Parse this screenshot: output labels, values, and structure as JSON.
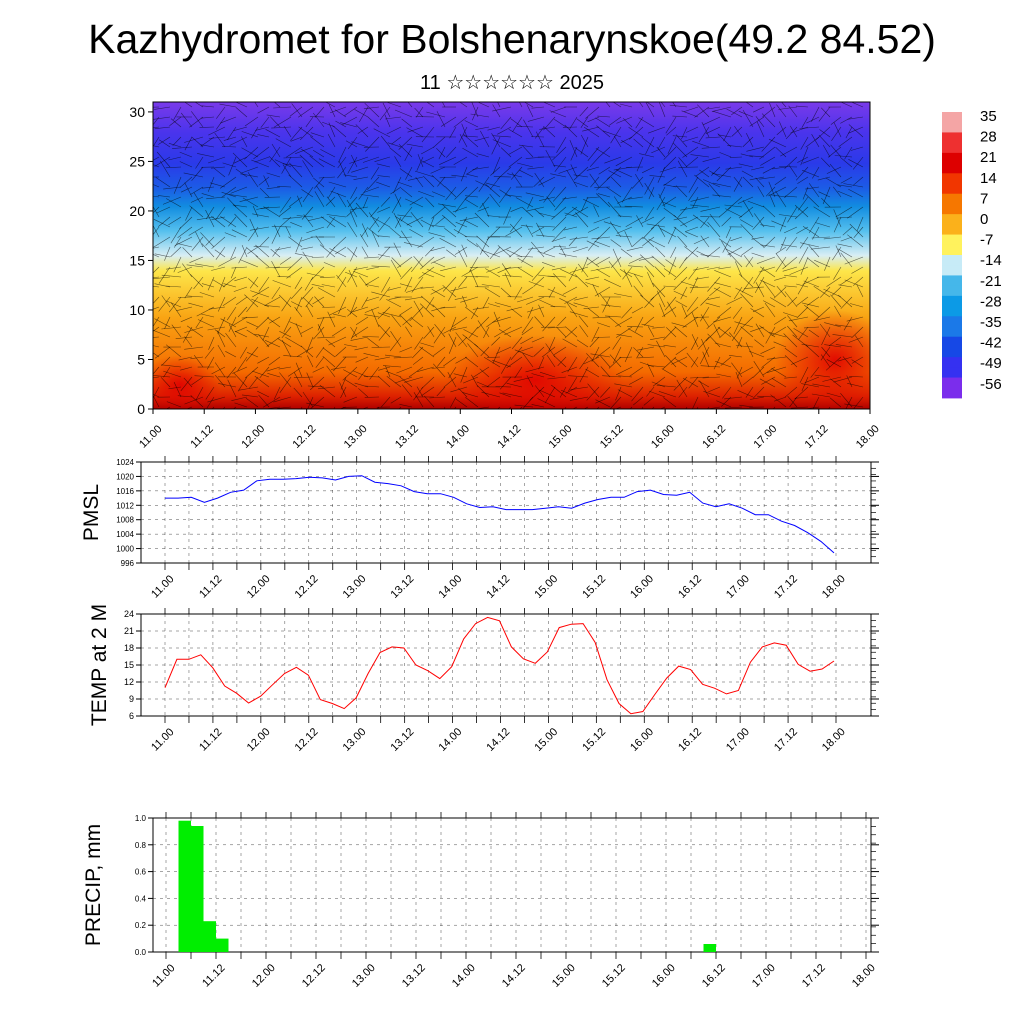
{
  "page": {
    "title": "Kazhydromet for Bolshenarynskoe(49.2 84.52)",
    "subtitle": "11 ☆☆☆☆☆☆ 2025"
  },
  "time_labels": [
    "11.00",
    "11.12",
    "12.00",
    "12.12",
    "13.00",
    "13.12",
    "14.00",
    "14.12",
    "15.00",
    "15.12",
    "16.00",
    "16.12",
    "17.00",
    "17.12",
    "18.00"
  ],
  "chart_data": [
    {
      "type": "heatmap",
      "title": "",
      "x_categories": [
        "11.00",
        "11.12",
        "12.00",
        "12.12",
        "13.00",
        "13.12",
        "14.00",
        "14.12",
        "15.00",
        "15.12",
        "16.00",
        "16.12",
        "17.00",
        "17.12",
        "18.00"
      ],
      "ylim": [
        0,
        31
      ],
      "yticks": [
        0,
        5,
        10,
        15,
        20,
        25,
        30
      ],
      "colorbar": {
        "labels": [
          "35",
          "28",
          "21",
          "14",
          "7",
          "0",
          "-7",
          "-14",
          "-21",
          "-28",
          "-35",
          "-42",
          "-49",
          "-56"
        ],
        "colors": [
          "#f4a5a5",
          "#ee3030",
          "#dd0000",
          "#f13600",
          "#f67700",
          "#fbb11b",
          "#fff25d",
          "#c7ebf7",
          "#45b7ea",
          "#0c9ae6",
          "#1b79e8",
          "#1648e6",
          "#3531f1",
          "#7b2dec"
        ]
      },
      "overlay": "wind barbs"
    },
    {
      "type": "line",
      "ylabel": "PMSL",
      "ylim": [
        996,
        1024
      ],
      "yticks": [
        "996",
        "1000",
        "1004",
        "1008",
        "1012",
        "1016",
        "1020",
        "1024"
      ],
      "color": "#0000ff",
      "values": [
        1014,
        1014,
        1014.2,
        1012.8,
        1014,
        1015.6,
        1016.2,
        1018.8,
        1019.2,
        1019.2,
        1019.4,
        1019.8,
        1019.6,
        1019,
        1020,
        1020.2,
        1018.4,
        1018,
        1017.4,
        1015.8,
        1015.2,
        1015.2,
        1014.2,
        1012.4,
        1011.4,
        1011.6,
        1010.8,
        1010.8,
        1010.8,
        1011.2,
        1011.6,
        1011.2,
        1012.6,
        1013.6,
        1014.2,
        1014.2,
        1015.8,
        1016.2,
        1015,
        1014.8,
        1015.6,
        1012.6,
        1011.6,
        1012.4,
        1011.2,
        1009.4,
        1009.4,
        1007.6,
        1006.4,
        1004.4,
        1002,
        998.8
      ]
    },
    {
      "type": "line",
      "ylabel": "TEMP at 2 M",
      "ylim": [
        6,
        24
      ],
      "yticks": [
        "6",
        "9",
        "12",
        "15",
        "18",
        "21",
        "24"
      ],
      "color": "#ff0000",
      "values": [
        11,
        16,
        16,
        16.8,
        14.5,
        11.3,
        10,
        8.3,
        9.5,
        11.5,
        13.5,
        14.6,
        13.2,
        8.9,
        8.2,
        7.3,
        9.2,
        13.5,
        17.2,
        18.2,
        18,
        15,
        14,
        12.6,
        14.7,
        19.6,
        22.3,
        23.4,
        22.8,
        18.2,
        16.1,
        15.3,
        17.3,
        21.6,
        22.2,
        22.3,
        19,
        12.4,
        8.2,
        6.4,
        6.8,
        9.8,
        12.7,
        14.8,
        14.2,
        11.6,
        10.9,
        9.9,
        10.5,
        15.5,
        18.2,
        18.9,
        18.5,
        15.1,
        13.9,
        14.3,
        15.7
      ]
    },
    {
      "type": "bar",
      "ylabel": "PRECIP, mm",
      "ylim": [
        0,
        1
      ],
      "yticks": [
        "0.0",
        "0.2",
        "0.4",
        "0.6",
        "0.8",
        "1.0"
      ],
      "color": "#00ee00",
      "bars": [
        {
          "start_h": 3,
          "end_h": 6,
          "value": 0.98
        },
        {
          "start_h": 6,
          "end_h": 9,
          "value": 0.94
        },
        {
          "start_h": 9,
          "end_h": 12,
          "value": 0.23
        },
        {
          "start_h": 12,
          "end_h": 15,
          "value": 0.1
        },
        {
          "start_h": 129,
          "end_h": 132,
          "value": 0.06
        }
      ]
    }
  ]
}
